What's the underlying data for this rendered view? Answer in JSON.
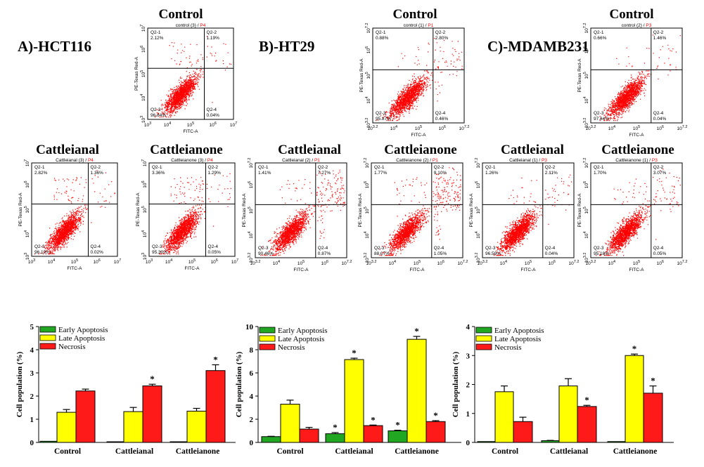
{
  "panels": [
    {
      "label": "A)-HCT116"
    },
    {
      "label": "B)-HT29"
    },
    {
      "label": "C)-MDAMB231"
    }
  ],
  "flow_titles": {
    "control": "Control",
    "cattleianal": "Cattleianal",
    "cattleianone": "Cattleianone"
  },
  "flow_axes": {
    "x": "FITC-A",
    "y": "PE-Texas Red-A"
  },
  "flow_plots": [
    {
      "title": "Control",
      "sub": "control",
      "rep": "(3)",
      "gate": "P4",
      "q1": "2.12%",
      "q2": "1.19%",
      "q3": "96.64%",
      "q4": "0.04%",
      "xt": [
        "10 3",
        "10 4",
        "10 5",
        "10 6",
        "10 7"
      ],
      "yt": [
        "10 3",
        "10 4",
        "10 5",
        "10 6",
        "10 7"
      ]
    },
    {
      "title": "Control",
      "sub": "control",
      "rep": "(1)",
      "gate": "P1",
      "q1": "0.88%",
      "q2": "2.80%",
      "q3": "95.87%",
      "q4": "0.46%",
      "xt": [
        "10 3.2",
        "10 4",
        "10 5",
        "10 6",
        "10 7.2"
      ],
      "yt": [
        "10 3.2",
        "10 4",
        "10 5",
        "10 6",
        "10 7.2"
      ]
    },
    {
      "title": "Control",
      "sub": "control",
      "rep": "(2)",
      "gate": "P3",
      "q1": "0.66%",
      "q2": "1.46%",
      "q3": "97.84%",
      "q4": "0.04%",
      "xt": [
        "10 3.2",
        "10 4",
        "10 5",
        "10 6",
        "10 7.2"
      ],
      "yt": [
        "10 3.2",
        "10 4",
        "10 5",
        "10 6",
        "10 7.2"
      ]
    },
    {
      "title": "Cattleianal",
      "sub": "Cattleianal",
      "rep": "(3)",
      "gate": "P4",
      "q1": "2.82%",
      "q2": "1.36%",
      "q3": "96.10%",
      "q4": "0.02%",
      "xt": [
        "10 3",
        "10 4",
        "10 5",
        "10 6",
        "10 7"
      ],
      "yt": [
        "10 3",
        "10 4",
        "10 5",
        "10 6",
        "10 7"
      ]
    },
    {
      "title": "Cattleianone",
      "sub": "Cattleianone",
      "rep": "(3)",
      "gate": "P4",
      "q1": "3.36%",
      "q2": "1.29%",
      "q3": "95.30%",
      "q4": "0.05%",
      "xt": [
        "10 3",
        "10 4",
        "10 5",
        "10 6",
        "10 7"
      ],
      "yt": [
        "10 3",
        "10 4",
        "10 5",
        "10 6",
        "10 7"
      ]
    },
    {
      "title": "Cattleianal",
      "sub": "Cattleianal",
      "rep": "(2)",
      "gate": "P1",
      "q1": "1.41%",
      "q2": "7.27%",
      "q3": "90.46%",
      "q4": "0.87%",
      "xt": [
        "10 3.2",
        "10 4",
        "10 5",
        "10 6",
        "10 7.2"
      ],
      "yt": [
        "10 3.2",
        "10 4",
        "10 5",
        "10 6",
        "10 7.2"
      ]
    },
    {
      "title": "Cattleianone",
      "sub": "Cattleianone",
      "rep": "(2)",
      "gate": "P1",
      "q1": "1.77%",
      "q2": "9.10%",
      "q3": "88.07%",
      "q4": "1.05%",
      "xt": [
        "10 3.2",
        "10 4",
        "10 5",
        "10 6",
        "10 7.2"
      ],
      "yt": [
        "10 3.2",
        "10 4",
        "10 5",
        "10 6",
        "10 7.2"
      ]
    },
    {
      "title": "Cattleianal",
      "sub": "Cattleianal",
      "rep": "(1)",
      "gate": "P3",
      "q1": "1.26%",
      "q2": "2.11%",
      "q3": "96.59%",
      "q4": "0.04%",
      "xt": [
        "10 3.2",
        "10 4",
        "10 5",
        "10 6",
        "10 7.2"
      ],
      "yt": [
        "10 3.2",
        "10 4",
        "10 5",
        "10 6",
        "10 7.2"
      ]
    },
    {
      "title": "Cattleianone",
      "sub": "Cattleianone",
      "rep": "(1)",
      "gate": "P3",
      "q1": "1.70%",
      "q2": "3.07%",
      "q3": "95.18%",
      "q4": "0.05%",
      "xt": [
        "10 3.2",
        "10 4",
        "10 5",
        "10 6",
        "10 7.2"
      ],
      "yt": [
        "10 3.2",
        "10 4",
        "10 5",
        "10 6",
        "10 7.2"
      ]
    }
  ],
  "quadrant_labels": {
    "q1": "Q2-1",
    "q2": "Q2-2",
    "q3": "Q2-3",
    "q4": "Q2-4"
  },
  "colors": {
    "early": "#22a722",
    "late": "#ffff00",
    "necrosis": "#ff1a1a",
    "dots": "#ff0000",
    "gate": "#ff0000"
  },
  "chart_data": [
    {
      "type": "bar",
      "cell_line": "HCT116",
      "categories": [
        "Control",
        "Cattleianal",
        "Cattleianone"
      ],
      "series": [
        {
          "name": "Early Apoptosis",
          "values": [
            0.05,
            0.03,
            0.03
          ],
          "errors": [
            0,
            0,
            0
          ],
          "sig": [
            "",
            "",
            ""
          ]
        },
        {
          "name": "Late Apoptosis",
          "values": [
            1.3,
            1.33,
            1.35
          ],
          "errors": [
            0.12,
            0.18,
            0.12
          ],
          "sig": [
            "",
            "",
            ""
          ]
        },
        {
          "name": "Necrosis",
          "values": [
            2.22,
            2.44,
            3.1
          ],
          "errors": [
            0.08,
            0.07,
            0.25
          ],
          "sig": [
            "",
            "*",
            "*"
          ]
        }
      ],
      "ylabel": "Cell population (%)",
      "ylim": [
        0,
        5
      ],
      "yticks": [
        "0",
        "1",
        "2",
        "3",
        "4",
        "5"
      ]
    },
    {
      "type": "bar",
      "cell_line": "HT29",
      "categories": [
        "Control",
        "Cattleianal",
        "Cattleianone"
      ],
      "series": [
        {
          "name": "Early Apoptosis",
          "values": [
            0.5,
            0.75,
            1.0
          ],
          "errors": [
            0.03,
            0.1,
            0.05
          ],
          "sig": [
            "",
            "*",
            "*"
          ]
        },
        {
          "name": "Late Apoptosis",
          "values": [
            3.3,
            7.15,
            8.9
          ],
          "errors": [
            0.35,
            0.12,
            0.25
          ],
          "sig": [
            "",
            "*",
            "*"
          ]
        },
        {
          "name": "Necrosis",
          "values": [
            1.15,
            1.45,
            1.8
          ],
          "errors": [
            0.15,
            0.05,
            0.08
          ],
          "sig": [
            "",
            "*",
            "*"
          ]
        }
      ],
      "ylabel": "Cell population (%)",
      "ylim": [
        0,
        10
      ],
      "yticks": [
        "0",
        "2",
        "4",
        "6",
        "8",
        "10"
      ]
    },
    {
      "type": "bar",
      "cell_line": "MDAMB231",
      "categories": [
        "Control",
        "Cattleianal",
        "Cattleianone"
      ],
      "series": [
        {
          "name": "Early Apoptosis",
          "values": [
            0.03,
            0.06,
            0.03
          ],
          "errors": [
            0,
            0.01,
            0
          ],
          "sig": [
            "",
            "",
            ""
          ]
        },
        {
          "name": "Late Apoptosis",
          "values": [
            1.75,
            1.95,
            3.0
          ],
          "errors": [
            0.2,
            0.25,
            0.05
          ],
          "sig": [
            "",
            "",
            "*"
          ]
        },
        {
          "name": "Necrosis",
          "values": [
            0.72,
            1.24,
            1.7
          ],
          "errors": [
            0.15,
            0.04,
            0.25
          ],
          "sig": [
            "",
            "*",
            "*"
          ]
        }
      ],
      "ylabel": "Cell population (%)",
      "ylim": [
        0,
        4
      ],
      "yticks": [
        "0",
        "1",
        "2",
        "3",
        "4"
      ]
    }
  ]
}
